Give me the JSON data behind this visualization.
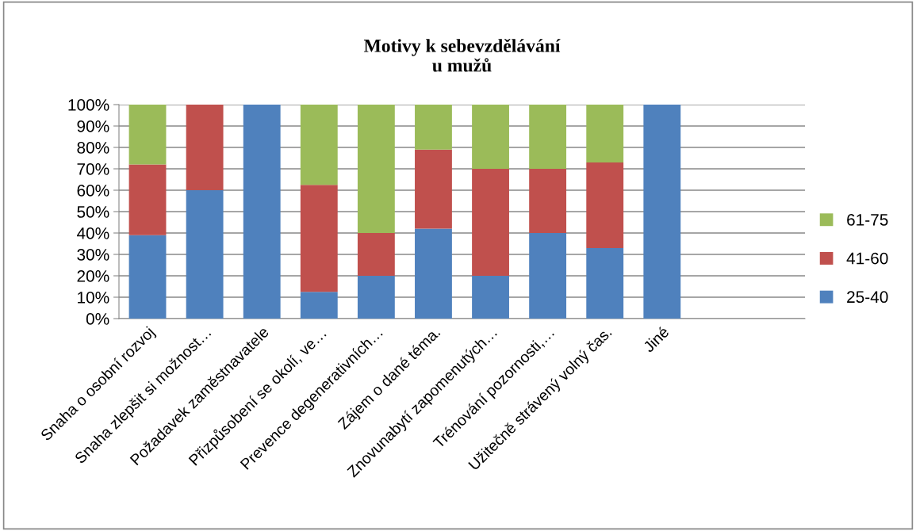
{
  "chart_data": {
    "type": "bar",
    "title": "Motivy k sebevzdělávání\nu mužů",
    "stacked": true,
    "categories": [
      "Snaha o osobní rozvoj",
      "Snaha zlepšit si možnost…",
      "Požadavek zaměstnavatele",
      "Přizpůsobení se okolí, ve…",
      "Prevence degenerativních…",
      "Zájem o dané téma.",
      "Znovunabytí zapomenutých…",
      "Trénování pozornosti,…",
      "Užitečně strávený volný čas.",
      "Jiné",
      null,
      null
    ],
    "series": [
      {
        "name": "25-40",
        "color": "#4f81bd",
        "values": [
          39,
          60,
          100,
          12.5,
          20,
          42,
          20,
          40,
          33,
          100,
          null,
          null
        ]
      },
      {
        "name": "41-60",
        "color": "#c0504d",
        "values": [
          33,
          40,
          0,
          50,
          20,
          37,
          50,
          30,
          40,
          0,
          null,
          null
        ]
      },
      {
        "name": "61-75",
        "color": "#9bbb59",
        "values": [
          28,
          0,
          0,
          37.5,
          60,
          21,
          30,
          30,
          27,
          0,
          null,
          null
        ]
      }
    ],
    "ylim": [
      0,
      100
    ],
    "yticks": [
      {
        "value": 0,
        "label": "0%"
      },
      {
        "value": 10,
        "label": "10%"
      },
      {
        "value": 20,
        "label": "20%"
      },
      {
        "value": 30,
        "label": "30%"
      },
      {
        "value": 40,
        "label": "40%"
      },
      {
        "value": 50,
        "label": "50%"
      },
      {
        "value": 60,
        "label": "60%"
      },
      {
        "value": 70,
        "label": "70%"
      },
      {
        "value": 80,
        "label": "80%"
      },
      {
        "value": 90,
        "label": "90%"
      },
      {
        "value": 100,
        "label": "100%"
      }
    ],
    "grid": "y",
    "legend": "right"
  }
}
